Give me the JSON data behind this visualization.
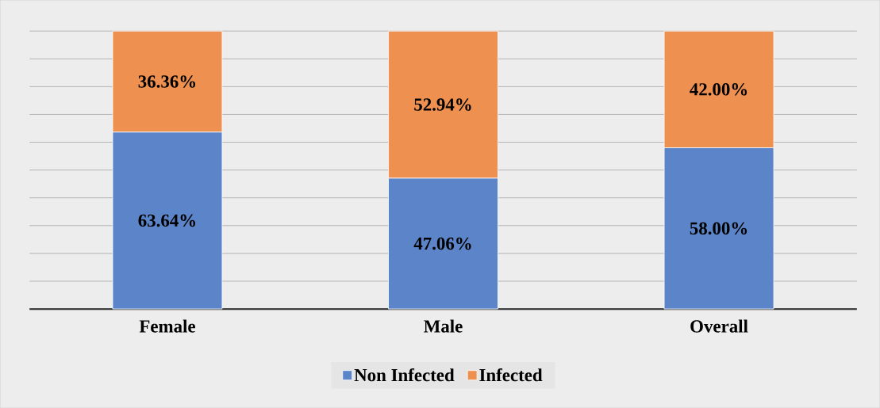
{
  "chart_data": {
    "type": "bar",
    "stacked": true,
    "categories": [
      "Female",
      "Male",
      "Overall"
    ],
    "series": [
      {
        "name": "Non Infected",
        "color": "#5b84c9",
        "values": [
          63.64,
          47.06,
          58.0
        ],
        "value_labels": [
          "63.64%",
          "47.06%",
          "58.00%"
        ]
      },
      {
        "name": "Infected",
        "color": "#ee9150",
        "values": [
          36.36,
          52.94,
          42.0
        ],
        "value_labels": [
          "36.36%",
          "52.94%",
          "42.00%"
        ]
      }
    ],
    "ylim": [
      0,
      100
    ],
    "yticks": [
      {
        "value": 0,
        "label": null
      },
      {
        "value": 10,
        "label": null
      },
      {
        "value": 20,
        "label": null
      },
      {
        "value": 30,
        "label": null
      },
      {
        "value": 40,
        "label": null
      },
      {
        "value": 50,
        "label": null
      },
      {
        "value": 60,
        "label": null
      },
      {
        "value": 70,
        "label": null
      },
      {
        "value": 80,
        "label": null
      },
      {
        "value": 90,
        "label": null
      },
      {
        "value": 100,
        "label": null
      }
    ],
    "tick_labels": "x",
    "grid": "y",
    "legend": "bottom"
  }
}
